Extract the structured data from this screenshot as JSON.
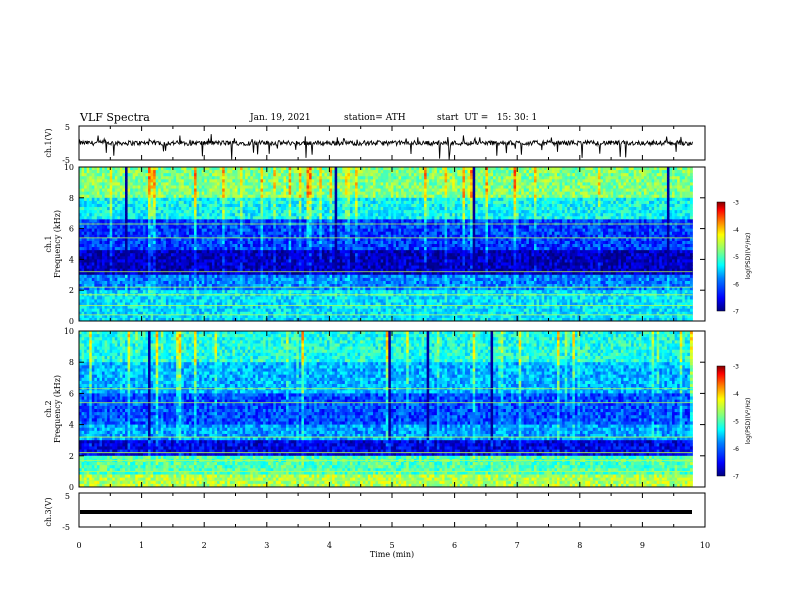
{
  "header": {
    "title": "VLF Spectra",
    "date": "Jan. 19, 2021",
    "station": "station= ATH",
    "start_ut": "start  UT =   15: 30: 1"
  },
  "chart_data": [
    {
      "type": "line",
      "name": "ch1-waveform",
      "ylabel": "ch.1(V)",
      "ylim": [
        -5,
        5
      ],
      "yticks": [
        "5",
        "-5"
      ],
      "xlim": [
        0,
        10
      ],
      "note": "dense waveform near 0 V with intermittent negative spikes"
    },
    {
      "type": "heatmap",
      "name": "ch1-spectrogram",
      "ylabel": "ch.1\nFrequency (kHz)",
      "ylim": [
        0,
        10
      ],
      "yticks": [
        "0",
        "2",
        "4",
        "6",
        "8",
        "10"
      ],
      "xlim": [
        0,
        9.8
      ],
      "colorbar": {
        "label": "log(PSD)(V²/Hz)",
        "range": [
          -7,
          -3
        ],
        "ticks": [
          "-3",
          "-4",
          "-5",
          "-6",
          "-7"
        ]
      }
    },
    {
      "type": "heatmap",
      "name": "ch2-spectrogram",
      "ylabel": "ch.2\nFrequency (kHz)",
      "ylim": [
        0,
        10
      ],
      "yticks": [
        "0",
        "2",
        "4",
        "6",
        "8",
        "10"
      ],
      "xlim": [
        0,
        9.8
      ],
      "colorbar": {
        "label": "log(PSD)(V²/Hz)",
        "range": [
          -7,
          -3
        ],
        "ticks": [
          "-3",
          "-4",
          "-5",
          "-6",
          "-7"
        ]
      }
    },
    {
      "type": "line",
      "name": "ch3-waveform",
      "ylabel": "ch.3(V)",
      "ylim": [
        -5,
        5
      ],
      "yticks": [
        "5",
        "-5"
      ],
      "xlim": [
        0,
        10
      ],
      "note": "flat thick trace near -2 V"
    }
  ],
  "xaxis": {
    "label": "Time  (min)",
    "ticks": [
      "0",
      "1",
      "2",
      "3",
      "4",
      "5",
      "6",
      "7",
      "8",
      "9",
      "10"
    ]
  },
  "colors": {
    "scale": [
      "#000080",
      "#0000ff",
      "#0080ff",
      "#00ffff",
      "#80ff80",
      "#ffff00",
      "#ff8000",
      "#ff0000",
      "#800000"
    ]
  }
}
